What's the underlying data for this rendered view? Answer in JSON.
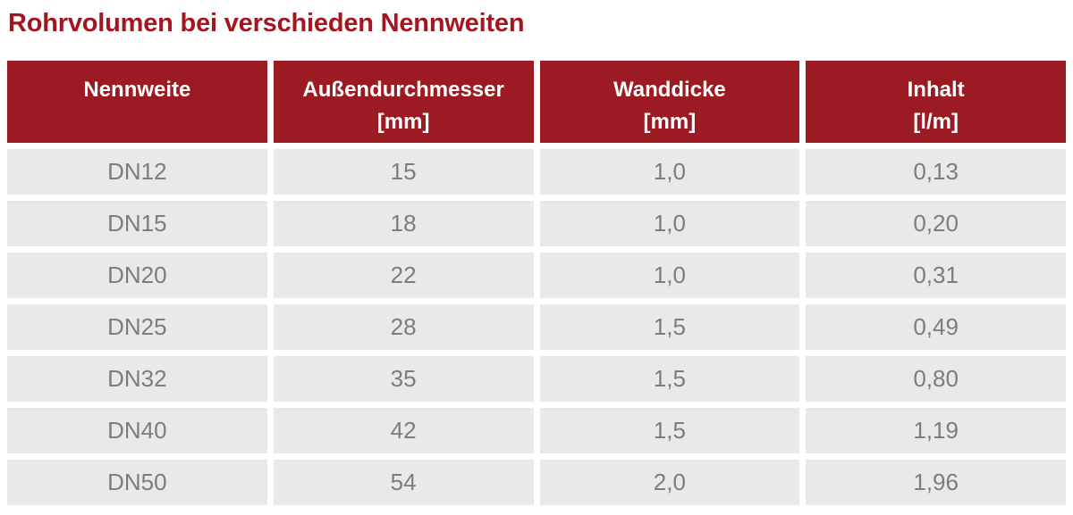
{
  "title": "Rohrvolumen bei verschieden Nennweiten",
  "colors": {
    "brand_red": "#9c1b22",
    "title_red": "#a31621",
    "row_bg": "#e9e9e9",
    "cell_text": "#7d7d7d",
    "header_text": "#ffffff",
    "page_bg": "#ffffff"
  },
  "table": {
    "columns": [
      {
        "label": "Nennweite",
        "unit": ""
      },
      {
        "label": "Außendurchmesser",
        "unit": "[mm]"
      },
      {
        "label": "Wanddicke",
        "unit": "[mm]"
      },
      {
        "label": "Inhalt",
        "unit": "[l/m]"
      }
    ],
    "rows": [
      [
        "DN12",
        "15",
        "1,0",
        "0,13"
      ],
      [
        "DN15",
        "18",
        "1,0",
        "0,20"
      ],
      [
        "DN20",
        "22",
        "1,0",
        "0,31"
      ],
      [
        "DN25",
        "28",
        "1,5",
        "0,49"
      ],
      [
        "DN32",
        "35",
        "1,5",
        "0,80"
      ],
      [
        "DN40",
        "42",
        "1,5",
        "1,19"
      ],
      [
        "DN50",
        "54",
        "2,0",
        "1,96"
      ]
    ]
  },
  "chart_data": {
    "type": "table",
    "title": "Rohrvolumen bei verschieden Nennweiten",
    "columns": [
      "Nennweite",
      "Außendurchmesser [mm]",
      "Wanddicke [mm]",
      "Inhalt [l/m]"
    ],
    "rows": [
      [
        "DN12",
        15,
        1.0,
        0.13
      ],
      [
        "DN15",
        18,
        1.0,
        0.2
      ],
      [
        "DN20",
        22,
        1.0,
        0.31
      ],
      [
        "DN25",
        28,
        1.5,
        0.49
      ],
      [
        "DN32",
        35,
        1.5,
        0.8
      ],
      [
        "DN40",
        42,
        1.5,
        1.19
      ],
      [
        "DN50",
        54,
        2.0,
        1.96
      ]
    ]
  }
}
